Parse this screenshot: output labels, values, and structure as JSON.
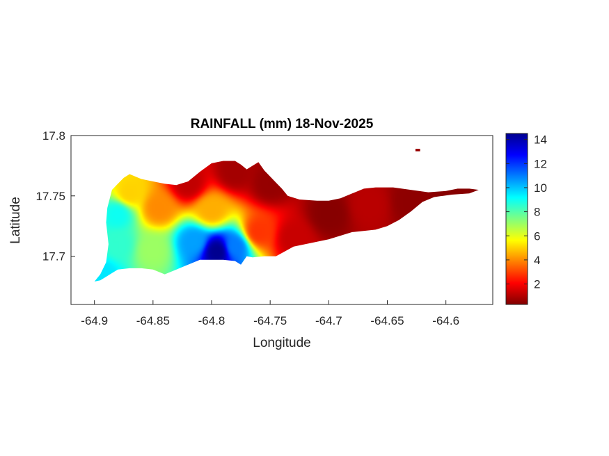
{
  "chart_data": {
    "type": "heatmap",
    "title": "RAINFALL (mm) 18-Nov-2025",
    "xlabel": "Longitude",
    "ylabel": "Latitude",
    "xlim": [
      -64.92,
      -64.56
    ],
    "ylim": [
      17.66,
      17.8
    ],
    "x_ticks": [
      -64.9,
      -64.85,
      -64.8,
      -64.75,
      -64.7,
      -64.65,
      -64.6
    ],
    "x_tick_labels": [
      "-64.9",
      "-64.85",
      "-64.8",
      "-64.75",
      "-64.7",
      "-64.65",
      "-64.6"
    ],
    "y_ticks": [
      17.7,
      17.75,
      17.8
    ],
    "y_tick_labels": [
      "17.7",
      "17.75",
      "17.8"
    ],
    "colormap": "jet",
    "colorbar": {
      "range": [
        0.3,
        14.5
      ],
      "ticks": [
        2,
        4,
        6,
        8,
        10,
        12,
        14
      ],
      "tick_labels": [
        "2",
        "4",
        "6",
        "8",
        "10",
        "12",
        "14"
      ],
      "placement": "right"
    },
    "island_outline": [
      [
        -64.9,
        17.679
      ],
      [
        -64.895,
        17.685
      ],
      [
        -64.89,
        17.695
      ],
      [
        -64.888,
        17.71
      ],
      [
        -64.89,
        17.728
      ],
      [
        -64.889,
        17.74
      ],
      [
        -64.885,
        17.755
      ],
      [
        -64.88,
        17.76
      ],
      [
        -64.875,
        17.765
      ],
      [
        -64.87,
        17.768
      ],
      [
        -64.86,
        17.764
      ],
      [
        -64.85,
        17.762
      ],
      [
        -64.84,
        17.76
      ],
      [
        -64.83,
        17.759
      ],
      [
        -64.82,
        17.762
      ],
      [
        -64.81,
        17.77
      ],
      [
        -64.8,
        17.777
      ],
      [
        -64.79,
        17.779
      ],
      [
        -64.78,
        17.779
      ],
      [
        -64.775,
        17.776
      ],
      [
        -64.77,
        17.772
      ],
      [
        -64.765,
        17.775
      ],
      [
        -64.76,
        17.778
      ],
      [
        -64.755,
        17.771
      ],
      [
        -64.75,
        17.766
      ],
      [
        -64.745,
        17.761
      ],
      [
        -64.74,
        17.756
      ],
      [
        -64.735,
        17.75
      ],
      [
        -64.725,
        17.747
      ],
      [
        -64.71,
        17.746
      ],
      [
        -64.7,
        17.746
      ],
      [
        -64.69,
        17.748
      ],
      [
        -64.68,
        17.752
      ],
      [
        -64.67,
        17.756
      ],
      [
        -64.66,
        17.757
      ],
      [
        -64.645,
        17.757
      ],
      [
        -64.63,
        17.755
      ],
      [
        -64.615,
        17.753
      ],
      [
        -64.6,
        17.754
      ],
      [
        -64.59,
        17.756
      ],
      [
        -64.58,
        17.756
      ],
      [
        -64.572,
        17.755
      ],
      [
        -64.58,
        17.752
      ],
      [
        -64.595,
        17.751
      ],
      [
        -64.61,
        17.749
      ],
      [
        -64.62,
        17.745
      ],
      [
        -64.63,
        17.737
      ],
      [
        -64.64,
        17.73
      ],
      [
        -64.65,
        17.725
      ],
      [
        -64.66,
        17.722
      ],
      [
        -64.68,
        17.72
      ],
      [
        -64.7,
        17.714
      ],
      [
        -64.715,
        17.711
      ],
      [
        -64.73,
        17.708
      ],
      [
        -64.745,
        17.7
      ],
      [
        -64.755,
        17.7
      ],
      [
        -64.765,
        17.699
      ],
      [
        -64.77,
        17.7
      ],
      [
        -64.775,
        17.693
      ],
      [
        -64.78,
        17.696
      ],
      [
        -64.79,
        17.697
      ],
      [
        -64.8,
        17.697
      ],
      [
        -64.81,
        17.697
      ],
      [
        -64.82,
        17.693
      ],
      [
        -64.83,
        17.689
      ],
      [
        -64.84,
        17.685
      ],
      [
        -64.85,
        17.689
      ],
      [
        -64.86,
        17.69
      ],
      [
        -64.87,
        17.69
      ],
      [
        -64.88,
        17.689
      ],
      [
        -64.885,
        17.686
      ],
      [
        -64.89,
        17.683
      ],
      [
        -64.895,
        17.68
      ]
    ],
    "islet_outline": [
      [
        -64.626,
        17.789
      ],
      [
        -64.622,
        17.789
      ],
      [
        -64.622,
        17.787
      ],
      [
        -64.626,
        17.787
      ]
    ],
    "rainfall_points": [
      {
        "lon": -64.795,
        "lat": 17.704,
        "value": 14.5
      },
      {
        "lon": -64.78,
        "lat": 17.708,
        "value": 11.0
      },
      {
        "lon": -64.815,
        "lat": 17.712,
        "value": 10.5
      },
      {
        "lon": -64.88,
        "lat": 17.735,
        "value": 9.0
      },
      {
        "lon": -64.88,
        "lat": 17.71,
        "value": 8.5
      },
      {
        "lon": -64.893,
        "lat": 17.685,
        "value": 9.5
      },
      {
        "lon": -64.85,
        "lat": 17.705,
        "value": 7.0
      },
      {
        "lon": -64.87,
        "lat": 17.752,
        "value": 5.0
      },
      {
        "lon": -64.845,
        "lat": 17.74,
        "value": 4.0
      },
      {
        "lon": -64.8,
        "lat": 17.738,
        "value": 4.5
      },
      {
        "lon": -64.76,
        "lat": 17.72,
        "value": 2.8
      },
      {
        "lon": -64.82,
        "lat": 17.76,
        "value": 1.2
      },
      {
        "lon": -64.78,
        "lat": 17.77,
        "value": 0.8
      },
      {
        "lon": -64.75,
        "lat": 17.76,
        "value": 0.6
      },
      {
        "lon": -64.73,
        "lat": 17.715,
        "value": 1.3
      },
      {
        "lon": -64.7,
        "lat": 17.735,
        "value": 0.4
      },
      {
        "lon": -64.665,
        "lat": 17.742,
        "value": 1.1
      },
      {
        "lon": -64.63,
        "lat": 17.745,
        "value": 0.5
      },
      {
        "lon": -64.59,
        "lat": 17.753,
        "value": 0.4
      }
    ]
  }
}
